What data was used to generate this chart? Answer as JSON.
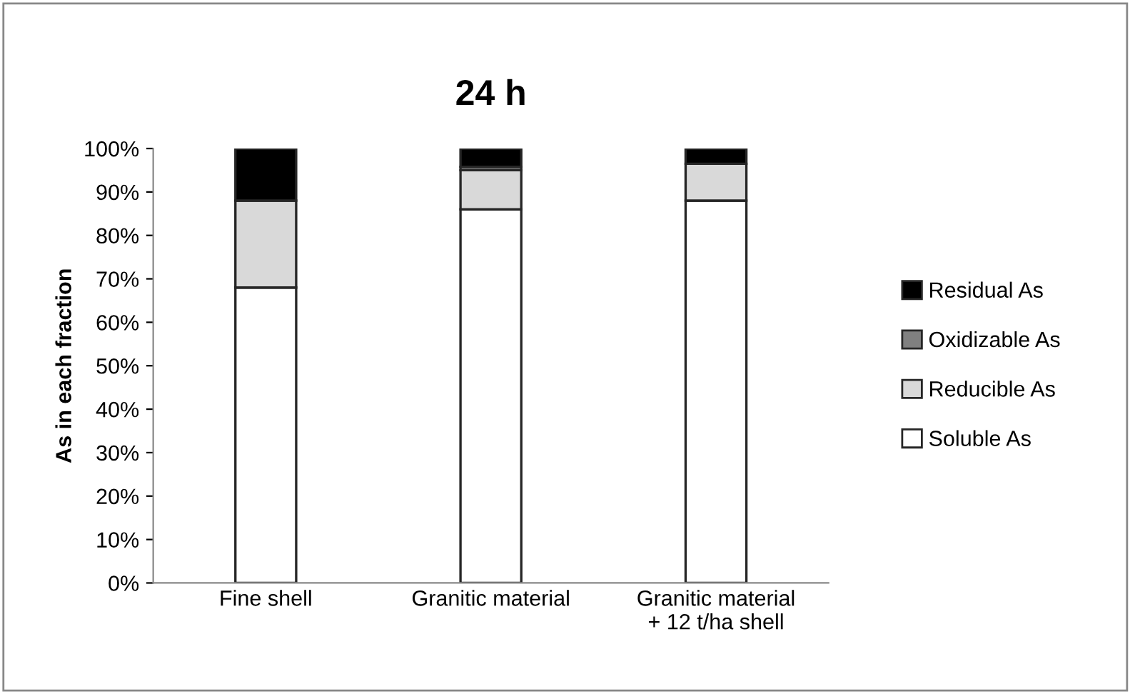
{
  "chart_data": {
    "type": "bar",
    "title": "24 h",
    "ylabel": "As in each fraction",
    "stacked": true,
    "categories": [
      "Fine shell",
      "Granitic material",
      "Granitic material\n+ 12 t/ha shell"
    ],
    "series": [
      {
        "name": "Soluble As",
        "color": "#ffffff",
        "values": [
          68,
          86,
          88
        ]
      },
      {
        "name": "Reducible As",
        "color": "#d9d9d9",
        "values": [
          20,
          9,
          8.5
        ]
      },
      {
        "name": "Oxidizable As",
        "color": "#808080",
        "values": [
          null,
          0.8,
          null
        ]
      },
      {
        "name": "Residual As",
        "color": "#000000",
        "values": [
          12,
          4.2,
          3.5
        ]
      }
    ],
    "ylim": [
      0,
      100
    ],
    "yticks": [
      {
        "value": 0,
        "label": "0%"
      },
      {
        "value": 10,
        "label": "10%"
      },
      {
        "value": 20,
        "label": "20%"
      },
      {
        "value": 30,
        "label": "30%"
      },
      {
        "value": 40,
        "label": "40%"
      },
      {
        "value": 50,
        "label": "50%"
      },
      {
        "value": 60,
        "label": "60%"
      },
      {
        "value": 70,
        "label": "70%"
      },
      {
        "value": 80,
        "label": "80%"
      },
      {
        "value": 90,
        "label": "90%"
      },
      {
        "value": 100,
        "label": "100%"
      }
    ],
    "grid": false,
    "legend": "right"
  }
}
